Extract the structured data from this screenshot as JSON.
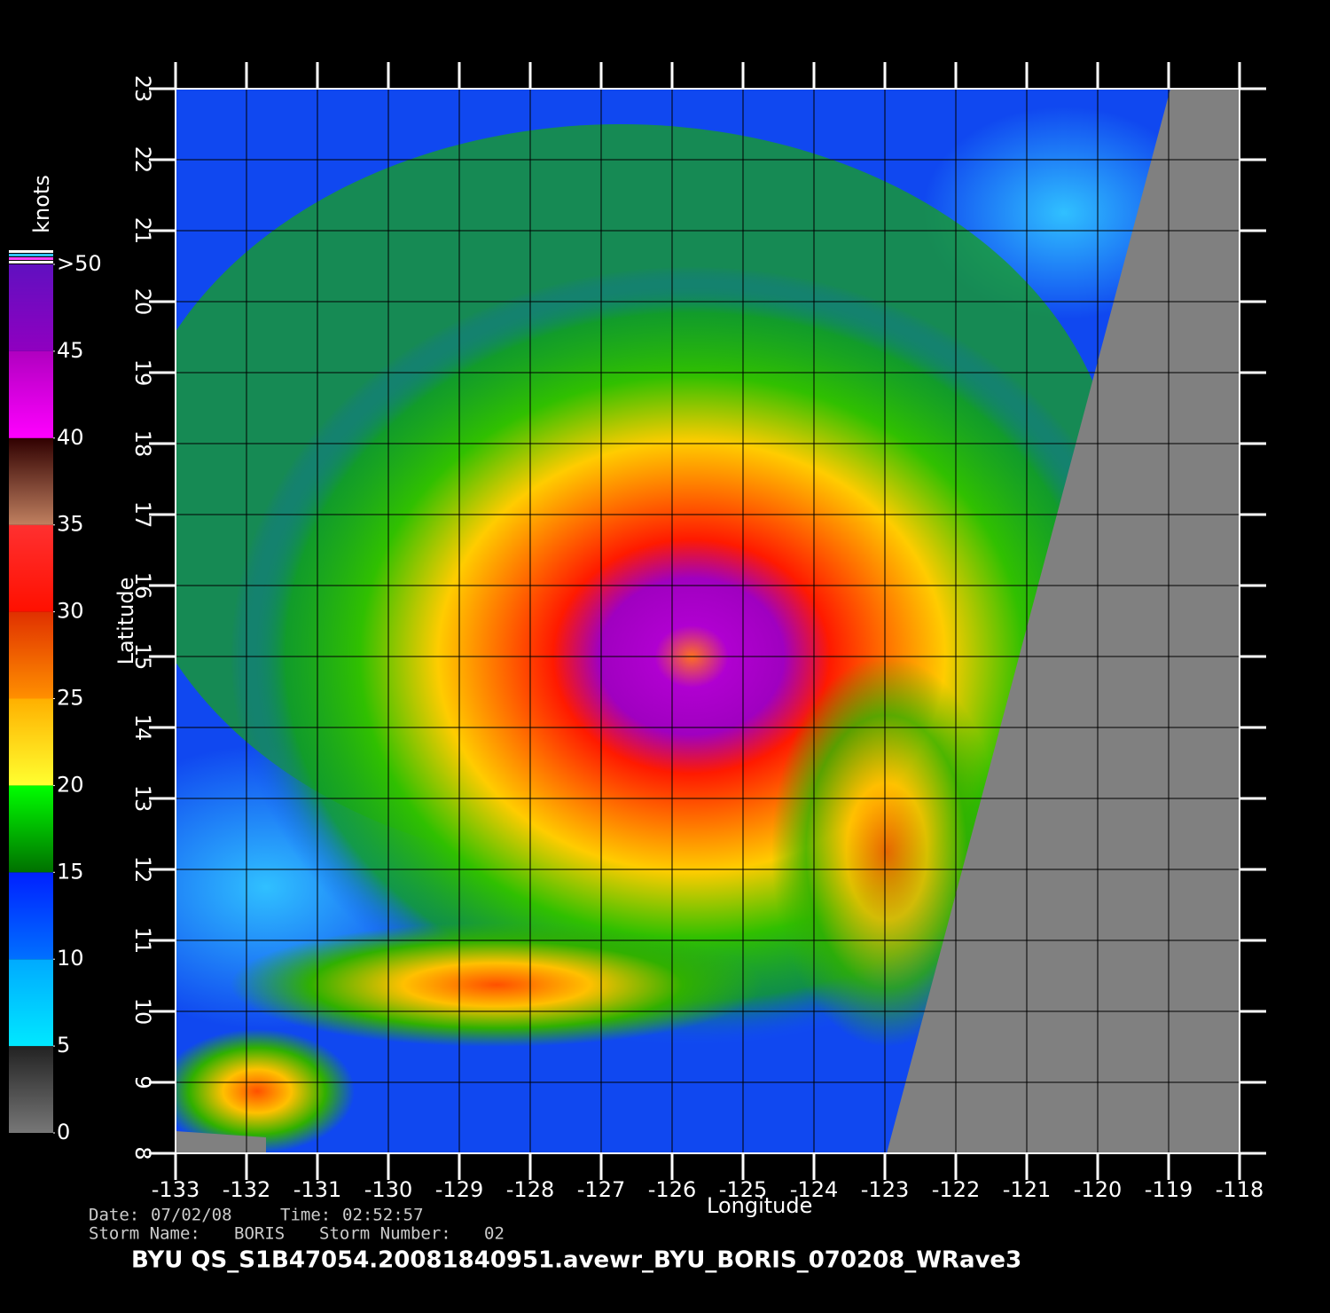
{
  "colorbar": {
    "title": "knots",
    "lim": [
      0,
      50
    ],
    "ticks": [
      0,
      5,
      10,
      15,
      20,
      25,
      30,
      35,
      40,
      45,
      {
        "value": 50,
        "label": ">50"
      }
    ],
    "colors": [
      [
        "#777777",
        "#222222"
      ],
      [
        "#00e8ff",
        "#00aaff"
      ],
      [
        "#0070ff",
        "#0020ff"
      ],
      [
        "#007000",
        "#00ff00"
      ],
      [
        "#ffff30",
        "#ffb000"
      ],
      [
        "#ff9000",
        "#e03000"
      ],
      [
        "#ff1000",
        "#ff3030"
      ],
      [
        "#c08060",
        "#300000"
      ],
      [
        "#ff00ff",
        "#b000c0"
      ],
      [
        "#9000c0",
        "#6010c0"
      ]
    ]
  },
  "map": {
    "xlabel": "Longitude",
    "ylabel": "Latitude",
    "xlim": [
      -133,
      -118
    ],
    "ylim": [
      8,
      23
    ],
    "xticks": [
      -133,
      -132,
      -131,
      -130,
      -129,
      -128,
      -127,
      -126,
      -125,
      -124,
      -123,
      -122,
      -121,
      -120,
      -119,
      -118
    ],
    "yticks": [
      8,
      9,
      10,
      11,
      12,
      13,
      14,
      15,
      16,
      17,
      18,
      19,
      20,
      21,
      22,
      23
    ]
  },
  "footer": {
    "date_label": "Date:",
    "date": "07/02/08",
    "time_label": "Time:",
    "time": "02:52:57",
    "storm_name_label": "Storm  Name:",
    "storm_name": "BORIS",
    "storm_number_label": "Storm  Number:",
    "storm_number": "02",
    "file": "BYU  QS_S1B47054.20081840951.avewr_BYU_BORIS_070208_WRave3"
  }
}
